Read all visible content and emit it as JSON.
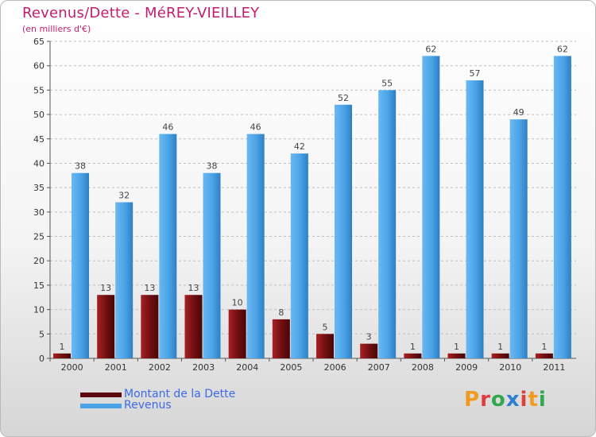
{
  "title": "Revenus/Dette - MéREY-VIEILLEY",
  "subtitle": "(en milliers d'€)",
  "brand": "Proxiti",
  "colors": {
    "title": "#c21e6e",
    "legend_text": "#3d6ae6",
    "dette": "#6e0e10",
    "revenus": "#4aa3e6",
    "grid": "#bfbfbf",
    "axis": "#555555"
  },
  "chart_data": {
    "type": "bar",
    "title": "Revenus/Dette - MéREY-VIEILLEY",
    "subtitle": "(en milliers d'€)",
    "xlabel": "",
    "ylabel": "",
    "ylim": [
      0,
      65
    ],
    "ytick_step": 5,
    "yticks": [
      "0",
      "5",
      "10",
      "15",
      "20",
      "25",
      "30",
      "35",
      "40",
      "45",
      "50",
      "55",
      "60",
      "65"
    ],
    "categories": [
      "2000",
      "2001",
      "2002",
      "2003",
      "2004",
      "2005",
      "2006",
      "2007",
      "2008",
      "2009",
      "2010",
      "2011"
    ],
    "series": [
      {
        "name": "Montant de la Dette",
        "values": [
          1,
          13,
          13,
          13,
          10,
          8,
          5,
          3,
          1,
          1,
          1,
          1
        ]
      },
      {
        "name": "Revenus",
        "values": [
          38,
          32,
          46,
          38,
          46,
          42,
          52,
          55,
          62,
          57,
          49,
          62
        ]
      }
    ],
    "legend": "bottom-left",
    "grid": true
  }
}
